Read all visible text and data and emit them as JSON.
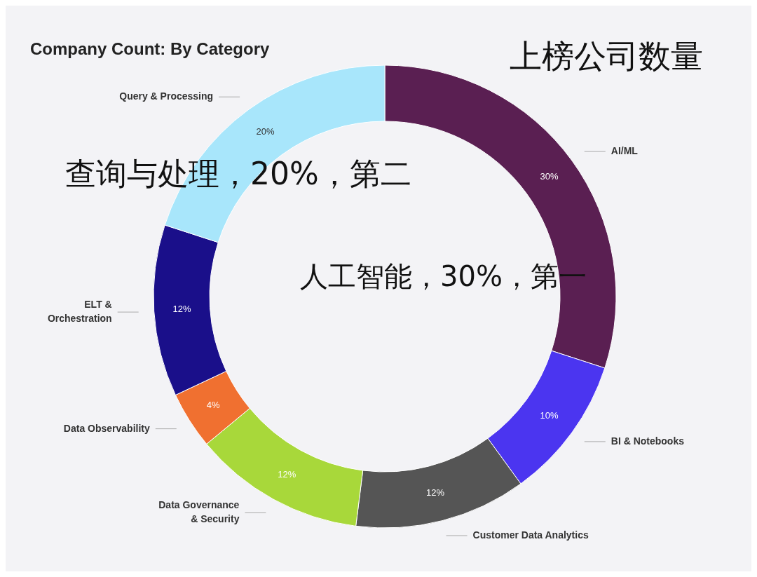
{
  "chart_data": {
    "type": "donut",
    "title": "Company Count: By Category",
    "subtitle": "上榜公司数量",
    "annotations": [
      "查询与处理，20%，第二",
      "人工智能，30%，第一"
    ],
    "categories": [
      "AI/ML",
      "BI & Notebooks",
      "Customer Data Analytics",
      "Data Governance\n& Security",
      "Data Observability",
      "ELT &\nOrchestration",
      "Query & Processing"
    ],
    "values": [
      30,
      10,
      12,
      12,
      4,
      12,
      20
    ],
    "colors": [
      "#5a1f52",
      "#4b35f0",
      "#555555",
      "#a8d83a",
      "#f07030",
      "#1a0f8a",
      "#a8e6fb"
    ],
    "value_labels": [
      "30%",
      "10%",
      "12%",
      "12%",
      "4%",
      "12%",
      "20%"
    ]
  }
}
